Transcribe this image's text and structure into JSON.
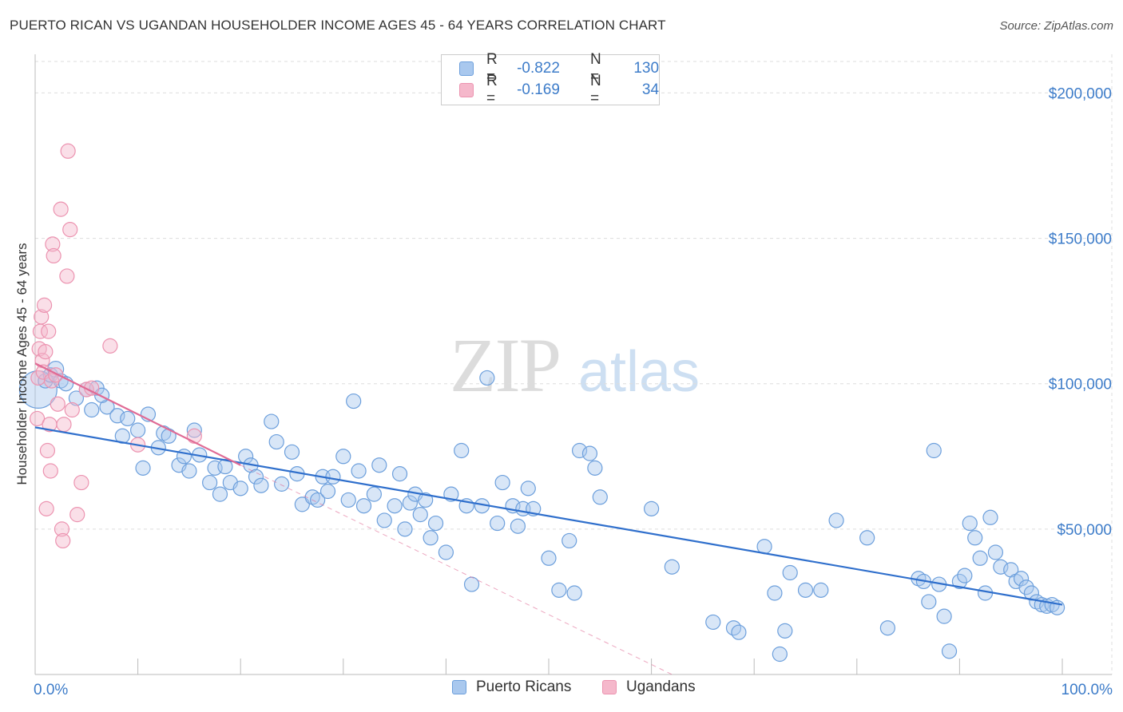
{
  "title": "PUERTO RICAN VS UGANDAN HOUSEHOLDER INCOME AGES 45 - 64 YEARS CORRELATION CHART",
  "source": "Source: ZipAtlas.com",
  "watermark": {
    "zip": "ZIP",
    "atlas": "atlas"
  },
  "colors": {
    "blue_fill": "#a9c8ee",
    "blue_stroke": "#6c9fdc",
    "blue_line": "#2f6fcc",
    "pink_fill": "#f5b8cb",
    "pink_stroke": "#ec93b0",
    "pink_line": "#e06b95",
    "axis_label": "#3d7cc9",
    "grid": "#dddddd"
  },
  "legend": {
    "rows": [
      {
        "r_label": "R =",
        "r_value": "-0.822",
        "n_label": "N =",
        "n_value": "130"
      },
      {
        "r_label": "R =",
        "r_value": "-0.169",
        "n_label": "N =",
        "n_value": "34"
      }
    ]
  },
  "bottom_legend": {
    "blue": "Puerto Ricans",
    "pink": "Ugandans"
  },
  "chart_data": {
    "type": "scatter",
    "title": "PUERTO RICAN VS UGANDAN HOUSEHOLDER INCOME AGES 45 - 64 YEARS CORRELATION CHART",
    "xlabel": "",
    "ylabel": "Householder Income Ages 45 - 64 years",
    "xlim": [
      0,
      100
    ],
    "ylim": [
      0,
      210000
    ],
    "x_tick_labels": {
      "left": "0.0%",
      "right": "100.0%"
    },
    "y_ticks": [
      50000,
      100000,
      150000,
      200000
    ],
    "y_tick_labels": [
      "$50,000",
      "$100,000",
      "$150,000",
      "$200,000"
    ],
    "grid": true,
    "series": [
      {
        "name": "Puerto Ricans",
        "r": -0.822,
        "n": 130,
        "trend": {
          "x0": 0,
          "y0": 85000,
          "x1": 100,
          "y1": 24000
        },
        "points": [
          [
            0.3,
            98000,
            2.6
          ],
          [
            1,
            101000,
            1
          ],
          [
            1.5,
            103000,
            1
          ],
          [
            2,
            105000,
            1.1
          ],
          [
            2.5,
            101000,
            1
          ],
          [
            3,
            100000,
            1
          ],
          [
            4,
            95000,
            1
          ],
          [
            5,
            98000,
            1
          ],
          [
            6,
            98500,
            1
          ],
          [
            5.5,
            91000,
            1
          ],
          [
            7,
            92000,
            1
          ],
          [
            6.5,
            96000,
            1
          ],
          [
            8,
            89000,
            1
          ],
          [
            8.5,
            82000,
            1
          ],
          [
            9,
            88000,
            1
          ],
          [
            10,
            84000,
            1
          ],
          [
            10.5,
            71000,
            1
          ],
          [
            11,
            89500,
            1
          ],
          [
            12,
            78000,
            1
          ],
          [
            12.5,
            83000,
            1
          ],
          [
            13,
            82000,
            1
          ],
          [
            14,
            72000,
            1
          ],
          [
            14.5,
            75000,
            1
          ],
          [
            15,
            70000,
            1
          ],
          [
            15.5,
            84000,
            1
          ],
          [
            16,
            75500,
            1
          ],
          [
            17,
            66000,
            1
          ],
          [
            17.5,
            71000,
            1
          ],
          [
            18,
            62000,
            1
          ],
          [
            18.5,
            71500,
            1
          ],
          [
            19,
            66000,
            1
          ],
          [
            20,
            64000,
            1
          ],
          [
            20.5,
            75000,
            1
          ],
          [
            21,
            72000,
            1
          ],
          [
            21.5,
            68000,
            1
          ],
          [
            22,
            65000,
            1
          ],
          [
            23,
            87000,
            1
          ],
          [
            23.5,
            80000,
            1
          ],
          [
            24,
            65500,
            1
          ],
          [
            25,
            76500,
            1
          ],
          [
            25.5,
            69000,
            1
          ],
          [
            26,
            58500,
            1
          ],
          [
            27,
            61000,
            1
          ],
          [
            27.5,
            60000,
            1
          ],
          [
            28,
            68000,
            1
          ],
          [
            28.5,
            63000,
            1
          ],
          [
            29,
            68000,
            1
          ],
          [
            30,
            75000,
            1
          ],
          [
            30.5,
            60000,
            1
          ],
          [
            31,
            94000,
            1
          ],
          [
            31.5,
            70000,
            1
          ],
          [
            32,
            58000,
            1
          ],
          [
            33,
            62000,
            1
          ],
          [
            33.5,
            72000,
            1
          ],
          [
            34,
            53000,
            1
          ],
          [
            35,
            58000,
            1
          ],
          [
            35.5,
            69000,
            1
          ],
          [
            36,
            50000,
            1
          ],
          [
            36.5,
            59000,
            1
          ],
          [
            37,
            62000,
            1
          ],
          [
            37.5,
            55000,
            1
          ],
          [
            38,
            60000,
            1
          ],
          [
            38.5,
            47000,
            1
          ],
          [
            39,
            52000,
            1
          ],
          [
            40,
            42000,
            1
          ],
          [
            40.5,
            62000,
            1
          ],
          [
            41.5,
            77000,
            1
          ],
          [
            42,
            58000,
            1
          ],
          [
            42.5,
            31000,
            1
          ],
          [
            43.5,
            58000,
            1
          ],
          [
            44,
            102000,
            1
          ],
          [
            45,
            52000,
            1
          ],
          [
            45.5,
            66000,
            1
          ],
          [
            46.5,
            58000,
            1
          ],
          [
            47,
            51000,
            1
          ],
          [
            47.5,
            57000,
            1
          ],
          [
            48,
            64000,
            1
          ],
          [
            48.5,
            57000,
            1
          ],
          [
            50,
            40000,
            1
          ],
          [
            51,
            29000,
            1
          ],
          [
            52,
            46000,
            1
          ],
          [
            52.5,
            28000,
            1
          ],
          [
            53,
            77000,
            1
          ],
          [
            54,
            76000,
            1
          ],
          [
            54.5,
            71000,
            1
          ],
          [
            55,
            61000,
            1
          ],
          [
            60,
            57000,
            1
          ],
          [
            62,
            37000,
            1
          ],
          [
            66,
            18000,
            1
          ],
          [
            68,
            16000,
            1
          ],
          [
            68.5,
            14500,
            1
          ],
          [
            71,
            44000,
            1
          ],
          [
            72,
            28000,
            1
          ],
          [
            72.5,
            7000,
            1
          ],
          [
            73,
            15000,
            1
          ],
          [
            73.5,
            35000,
            1
          ],
          [
            75,
            29000,
            1
          ],
          [
            76.5,
            29000,
            1
          ],
          [
            78,
            53000,
            1
          ],
          [
            81,
            47000,
            1
          ],
          [
            83,
            16000,
            1
          ],
          [
            86,
            33000,
            1
          ],
          [
            86.5,
            32000,
            1
          ],
          [
            87,
            25000,
            1
          ],
          [
            87.5,
            77000,
            1
          ],
          [
            88,
            31000,
            1
          ],
          [
            88.5,
            20000,
            1
          ],
          [
            89,
            8000,
            1
          ],
          [
            90,
            32000,
            1
          ],
          [
            90.5,
            34000,
            1
          ],
          [
            91,
            52000,
            1
          ],
          [
            91.5,
            47000,
            1
          ],
          [
            92,
            40000,
            1
          ],
          [
            92.5,
            28000,
            1
          ],
          [
            93,
            54000,
            1
          ],
          [
            93.5,
            42000,
            1
          ],
          [
            94,
            37000,
            1
          ],
          [
            95,
            36000,
            1
          ],
          [
            95.5,
            32000,
            1
          ],
          [
            96,
            33000,
            1
          ],
          [
            96.5,
            30000,
            1
          ],
          [
            97,
            28000,
            1
          ],
          [
            97.5,
            25000,
            1
          ],
          [
            98,
            24000,
            1
          ],
          [
            98.5,
            23500,
            1
          ],
          [
            99,
            24000,
            1
          ],
          [
            99.5,
            23000,
            1
          ]
        ]
      },
      {
        "name": "Ugandans",
        "r": -0.169,
        "n": 34,
        "trend": {
          "x0": 0,
          "y0": 107000,
          "x1": 20,
          "y1": 72000
        },
        "trend_extension": {
          "x0": 20,
          "y0": 72000,
          "x1": 62,
          "y1": 0
        },
        "points": [
          [
            0.2,
            88000,
            1
          ],
          [
            0.3,
            102000,
            1
          ],
          [
            0.4,
            112000,
            1
          ],
          [
            0.5,
            118000,
            1
          ],
          [
            0.6,
            123000,
            1
          ],
          [
            0.7,
            108000,
            1
          ],
          [
            0.8,
            104000,
            1
          ],
          [
            0.9,
            127000,
            1
          ],
          [
            1,
            111000,
            1
          ],
          [
            1.1,
            57000,
            1
          ],
          [
            1.2,
            77000,
            1
          ],
          [
            1.3,
            118000,
            1
          ],
          [
            1.4,
            86000,
            1
          ],
          [
            1.5,
            70000,
            1
          ],
          [
            1.6,
            101000,
            1
          ],
          [
            1.7,
            148000,
            1
          ],
          [
            1.8,
            144000,
            1
          ],
          [
            2,
            103000,
            1
          ],
          [
            2.2,
            93000,
            1
          ],
          [
            2.5,
            160000,
            1
          ],
          [
            2.6,
            50000,
            1
          ],
          [
            2.7,
            46000,
            1
          ],
          [
            2.8,
            86000,
            1
          ],
          [
            3.2,
            180000,
            1
          ],
          [
            3.1,
            137000,
            1
          ],
          [
            3.4,
            153000,
            1
          ],
          [
            3.6,
            91000,
            1
          ],
          [
            4.1,
            55000,
            1
          ],
          [
            4.5,
            66000,
            1
          ],
          [
            5,
            98000,
            1
          ],
          [
            5.5,
            98500,
            1
          ],
          [
            7.3,
            113000,
            1
          ],
          [
            10,
            79000,
            1
          ],
          [
            15.5,
            82000,
            1
          ]
        ]
      }
    ]
  }
}
